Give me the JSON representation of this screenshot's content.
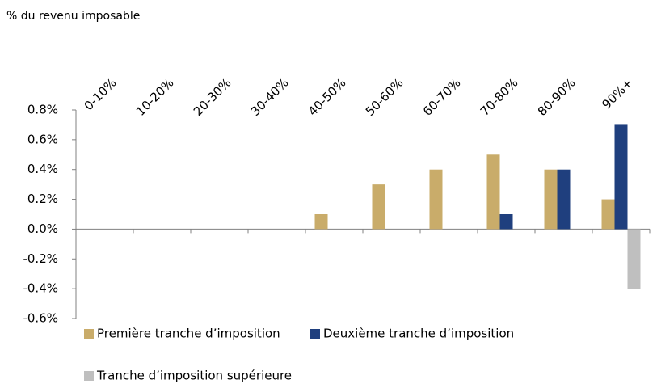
{
  "chart_data": {
    "type": "bar",
    "title": "% du revenu imposable",
    "categories": [
      "0-10%",
      "10-20%",
      "20-30%",
      "30-40%",
      "40-50%",
      "50-60%",
      "60-70%",
      "70-80%",
      "80-90%",
      "90%+"
    ],
    "series": [
      {
        "name": "Première tranche d’imposition",
        "color": "#c9ac6a",
        "values": [
          0,
          0,
          0,
          0,
          0.1,
          0.3,
          0.4,
          0.5,
          0.4,
          0.2
        ]
      },
      {
        "name": "Deuxième tranche d’imposition",
        "color": "#1f3f7e",
        "values": [
          0,
          0,
          0,
          0,
          0,
          0,
          0,
          0.1,
          0.4,
          0.7
        ]
      },
      {
        "name": "Tranche d’imposition supérieure",
        "color": "#bfbfbf",
        "values": [
          0,
          0,
          0,
          0,
          0,
          0,
          0,
          0,
          0,
          -0.4
        ]
      }
    ],
    "ylim": [
      -0.6,
      0.8
    ],
    "yticks": [
      {
        "value": -0.6,
        "label": "-0.6%"
      },
      {
        "value": -0.4,
        "label": "-0.4%"
      },
      {
        "value": -0.2,
        "label": "-0.2%"
      },
      {
        "value": 0,
        "label": "0.0%"
      },
      {
        "value": 0.2,
        "label": "0.2%"
      },
      {
        "value": 0.4,
        "label": "0.4%"
      },
      {
        "value": 0.6,
        "label": "0.6%"
      },
      {
        "value": 0.8,
        "label": "0.8%"
      }
    ]
  }
}
